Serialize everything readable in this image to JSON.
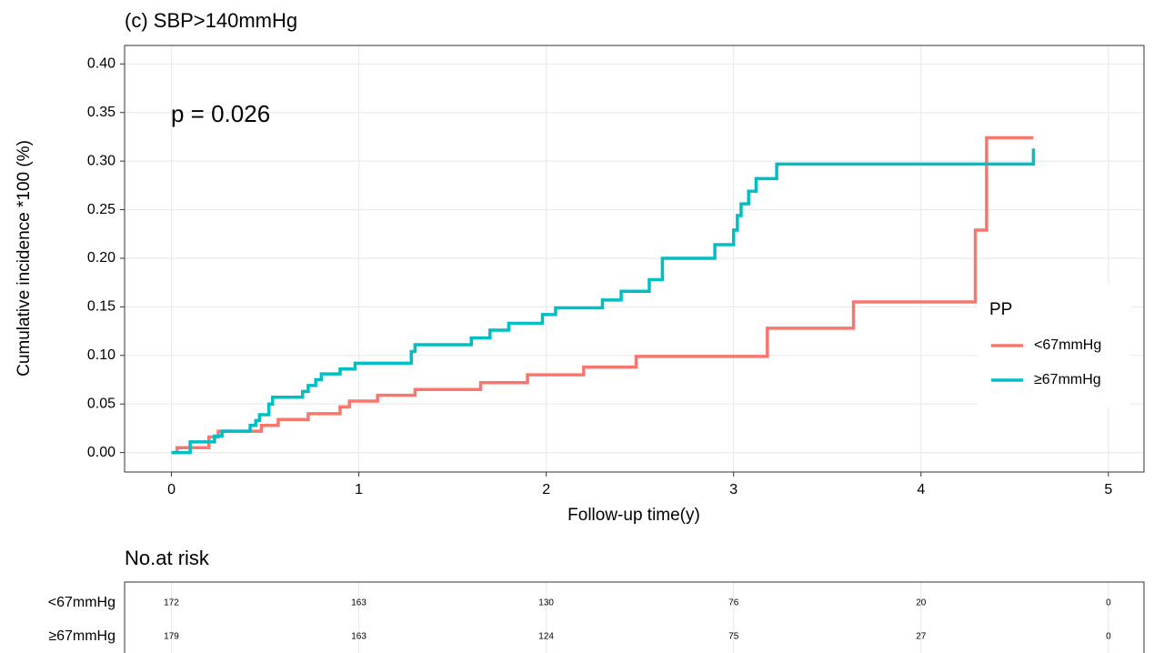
{
  "chart_data": {
    "type": "step",
    "title": "(c) SBP>140mmHg",
    "x_label": "Follow-up time(y)",
    "y_label": "Cumulative incidence *100 (%)",
    "annotation": "p = 0.026",
    "legend_title": "PP",
    "legend_position": "right",
    "grid": true,
    "xlim": [
      -0.25,
      5.19
    ],
    "ylim": [
      -0.02,
      0.419
    ],
    "xticks": [
      0,
      1,
      2,
      3,
      4,
      5
    ],
    "yticks": [
      {
        "value": 0,
        "label": "0.00"
      },
      {
        "value": 0.05,
        "label": "0.05"
      },
      {
        "value": 0.1,
        "label": "0.10"
      },
      {
        "value": 0.15,
        "label": "0.15"
      },
      {
        "value": 0.2,
        "label": "0.20"
      },
      {
        "value": 0.25,
        "label": "0.25"
      },
      {
        "value": 0.3,
        "label": "0.30"
      },
      {
        "value": 0.35,
        "label": "0.35"
      },
      {
        "value": 0.4,
        "label": "0.40"
      }
    ],
    "series": [
      {
        "name": "<67mmHg",
        "color": "#F8766D",
        "x": [
          0,
          0.03,
          0.2,
          0.25,
          0.48,
          0.57,
          0.73,
          0.9,
          0.95,
          1.1,
          1.3,
          1.65,
          1.9,
          2.2,
          2.48,
          3.18,
          3.64,
          4.29,
          4.35,
          4.6
        ],
        "values": [
          0,
          0.005,
          0.016,
          0.022,
          0.028,
          0.034,
          0.04,
          0.047,
          0.053,
          0.059,
          0.065,
          0.072,
          0.08,
          0.088,
          0.099,
          0.128,
          0.155,
          0.229,
          0.324,
          0.324
        ]
      },
      {
        "name": "≥67mmHg",
        "color": "#00BFC4",
        "x": [
          0,
          0.1,
          0.23,
          0.27,
          0.42,
          0.45,
          0.47,
          0.52,
          0.54,
          0.7,
          0.73,
          0.77,
          0.8,
          0.9,
          0.98,
          1.28,
          1.3,
          1.6,
          1.7,
          1.8,
          1.98,
          2.05,
          2.3,
          2.4,
          2.55,
          2.62,
          2.9,
          3.0,
          3.02,
          3.04,
          3.08,
          3.12,
          3.23,
          4.6
        ],
        "values": [
          0,
          0.011,
          0.017,
          0.022,
          0.028,
          0.033,
          0.039,
          0.05,
          0.057,
          0.063,
          0.069,
          0.075,
          0.081,
          0.086,
          0.092,
          0.104,
          0.111,
          0.118,
          0.126,
          0.133,
          0.142,
          0.149,
          0.157,
          0.166,
          0.178,
          0.2,
          0.214,
          0.229,
          0.244,
          0.256,
          0.269,
          0.282,
          0.297,
          0.313
        ]
      }
    ],
    "risk_table": {
      "title": "No.at risk",
      "x": [
        0,
        1,
        2,
        3,
        4,
        5
      ],
      "rows": [
        {
          "name": "<67mmHg",
          "values": [
            172,
            163,
            130,
            76,
            20,
            0
          ]
        },
        {
          "name": "≥67mmHg",
          "values": [
            179,
            163,
            124,
            75,
            27,
            0
          ]
        }
      ]
    }
  }
}
